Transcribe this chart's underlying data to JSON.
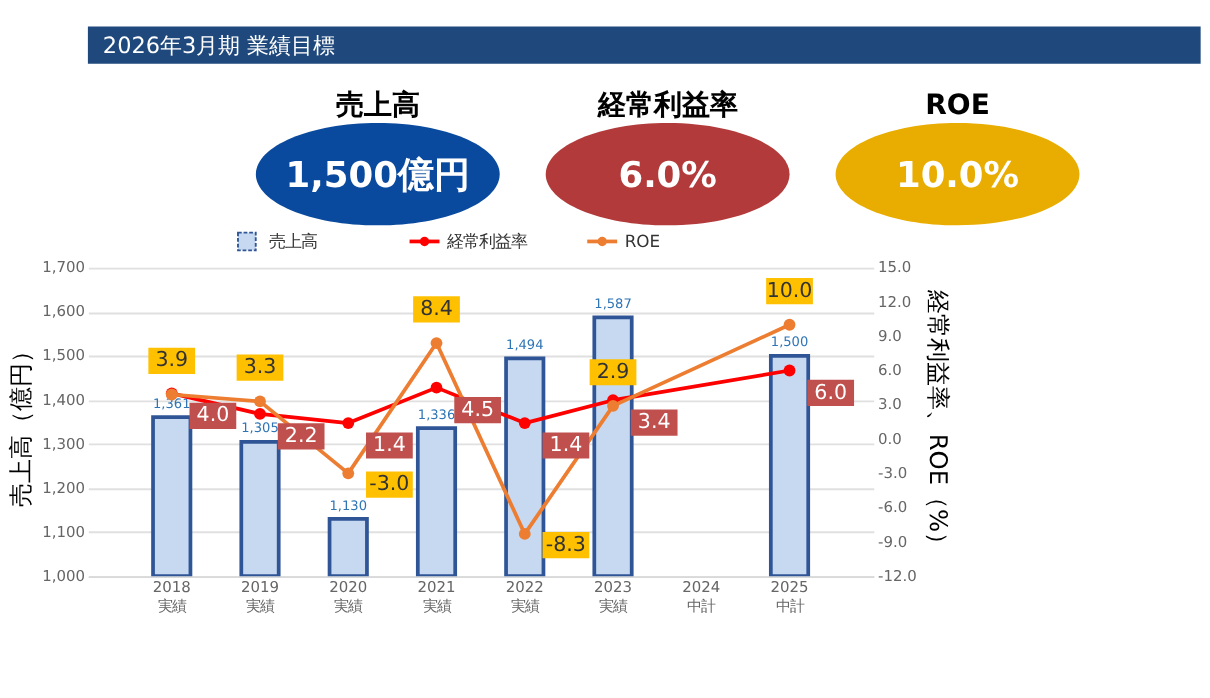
{
  "chart_data": [
    {
      "type": "other",
      "title": "2026年3月期 業績目標",
      "annotations": [
        "売上高",
        "1,500億円",
        "経常利益率",
        "6.0%",
        "ROE",
        "10.0%"
      ],
      "colors": [
        "#0a4a9e",
        "#b23a3a",
        "#e8ad00"
      ]
    },
    {
      "type": "bar",
      "categories": [
        "2018 実績",
        "2019 実績",
        "2020 実績",
        "2021 実績",
        "2022 実績",
        "2023 実績",
        "2024 中計",
        "2025 中計"
      ],
      "ylabel": "売上高（億円）",
      "y2label": "経常利益率、ROE（%）",
      "ylim": [
        1000,
        1700
      ],
      "yticks": [
        {
          "value": 1000,
          "label": "1,000"
        },
        {
          "value": 1100,
          "label": "1,100"
        },
        {
          "value": 1200,
          "label": "1,200"
        },
        {
          "value": 1300,
          "label": "1,300"
        },
        {
          "value": 1400,
          "label": "1,400"
        },
        {
          "value": 1500,
          "label": "1,500"
        },
        {
          "value": 1600,
          "label": "1,600"
        },
        {
          "value": 1700,
          "label": "1,700"
        }
      ],
      "y2lim": [
        -12,
        15
      ],
      "y2ticks": [
        {
          "value": -12,
          "label": "-12.0"
        },
        {
          "value": -9,
          "label": "-9.0"
        },
        {
          "value": -6,
          "label": "-6.0"
        },
        {
          "value": -3,
          "label": "-3.0"
        },
        {
          "value": 0,
          "label": "0.0"
        },
        {
          "value": 3,
          "label": "3.0"
        },
        {
          "value": 6,
          "label": "6.0"
        },
        {
          "value": 9,
          "label": "9.0"
        },
        {
          "value": 12,
          "label": "12.0"
        },
        {
          "value": 15,
          "label": "15.0"
        }
      ],
      "grid": "y",
      "legend": "top",
      "marker": "circle",
      "series": [
        {
          "name": "売上高",
          "type": "bar",
          "color": "#c6d9f0",
          "values": [
            1361,
            1305,
            1130,
            1336,
            1494,
            1587,
            null,
            1500
          ],
          "value_labels": [
            "1,361",
            "1,305",
            "1,130",
            "1,336",
            "1,494",
            "1,587",
            null,
            "1,500"
          ]
        },
        {
          "name": "経常利益率",
          "type": "line",
          "axis": "y2",
          "color": "#ff0000",
          "values": [
            4.0,
            2.2,
            1.4,
            4.5,
            1.4,
            3.4,
            null,
            6.0
          ],
          "value_labels": [
            "4.0",
            "2.2",
            "1.4",
            "4.5",
            "1.4",
            "3.4",
            null,
            "6.0"
          ]
        },
        {
          "name": "ROE",
          "type": "line",
          "axis": "y2",
          "color": "#ed7d31",
          "values": [
            3.9,
            3.3,
            -3.0,
            8.4,
            -8.3,
            2.9,
            null,
            10.0
          ],
          "value_labels": [
            "3.9",
            "3.3",
            "-3.0",
            "8.4",
            "-8.3",
            "2.9",
            null,
            "10.0"
          ]
        }
      ]
    }
  ]
}
